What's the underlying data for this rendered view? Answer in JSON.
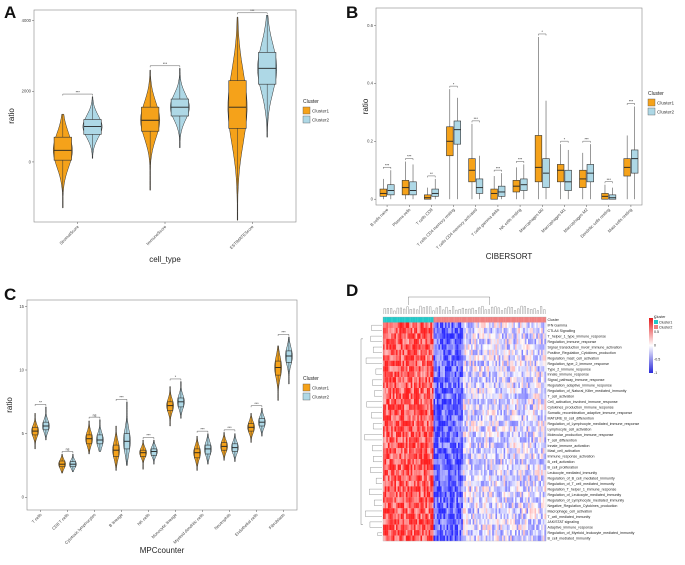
{
  "colors": {
    "cluster1": "#F5A21A",
    "cluster2": "#AED8E6",
    "heat_high": "#E41A1C",
    "heat_low": "#2B2BD9",
    "heat_mid": "#FFFFFF"
  },
  "chart_data": [
    {
      "panel": "A",
      "type": "violin_box",
      "title": "",
      "xlabel": "cell_type",
      "ylabel": "ratio",
      "categories": [
        "StromalScore",
        "ImmuneScore",
        "ESTIMATEScore"
      ],
      "yticks": [
        0,
        2000,
        4000
      ],
      "ylim": [
        -1700,
        4300
      ],
      "legend": {
        "title": "Cluster",
        "entries": [
          "Cluster1",
          "Cluster2"
        ],
        "position": "right"
      },
      "series": [
        {
          "name": "Cluster1",
          "color": "#F5A21A",
          "stats": [
            {
              "min": -1300,
              "q1": 50,
              "median": 330,
              "q3": 700,
              "max": 1350
            },
            {
              "min": -800,
              "q1": 870,
              "median": 1180,
              "q3": 1550,
              "max": 2600
            },
            {
              "min": -1650,
              "q1": 950,
              "median": 1550,
              "q3": 2300,
              "max": 4100
            }
          ]
        },
        {
          "name": "Cluster2",
          "color": "#AED8E6",
          "stats": [
            {
              "min": 100,
              "q1": 780,
              "median": 1000,
              "q3": 1200,
              "max": 1850
            },
            {
              "min": 400,
              "q1": 1300,
              "median": 1550,
              "q3": 1780,
              "max": 2650
            },
            {
              "min": 700,
              "q1": 2200,
              "median": 2650,
              "q3": 3100,
              "max": 4150
            }
          ]
        }
      ],
      "significance": [
        "***",
        "***",
        "***"
      ]
    },
    {
      "panel": "B",
      "type": "box",
      "xlabel": "CIBERSORT",
      "ylabel": "ratio",
      "categories": [
        "B cells naive",
        "Plasma cells",
        "T cells CD8",
        "T cells CD4 memory resting",
        "T cells CD4 memory activated",
        "T cells gamma delta",
        "NK cells resting",
        "Macrophages M0",
        "Macrophages M1",
        "Macrophages M2",
        "Dendritic cells resting",
        "Mast cells resting"
      ],
      "yticks": [
        0.0,
        0.2,
        0.4,
        0.6
      ],
      "ylim": [
        -0.02,
        0.66
      ],
      "legend": {
        "title": "Cluster",
        "entries": [
          "Cluster1",
          "Cluster2"
        ],
        "position": "right"
      },
      "series": [
        {
          "name": "Cluster1",
          "color": "#F5A21A",
          "stats": [
            {
              "min": 0.0,
              "q1": 0.01,
              "median": 0.02,
              "q3": 0.035,
              "max": 0.07
            },
            {
              "min": 0.0,
              "q1": 0.015,
              "median": 0.04,
              "q3": 0.065,
              "max": 0.13
            },
            {
              "min": 0.0,
              "q1": 0.0,
              "median": 0.005,
              "q3": 0.015,
              "max": 0.04
            },
            {
              "min": 0.0,
              "q1": 0.15,
              "median": 0.2,
              "q3": 0.25,
              "max": 0.38
            },
            {
              "min": 0.0,
              "q1": 0.06,
              "median": 0.1,
              "q3": 0.14,
              "max": 0.26
            },
            {
              "min": 0.0,
              "q1": 0.0,
              "median": 0.02,
              "q3": 0.035,
              "max": 0.08
            },
            {
              "min": 0.0,
              "q1": 0.025,
              "median": 0.045,
              "q3": 0.065,
              "max": 0.11
            },
            {
              "min": 0.0,
              "q1": 0.06,
              "median": 0.11,
              "q3": 0.22,
              "max": 0.56
            },
            {
              "min": 0.0,
              "q1": 0.06,
              "median": 0.1,
              "q3": 0.12,
              "max": 0.19
            },
            {
              "min": 0.0,
              "q1": 0.04,
              "median": 0.07,
              "q3": 0.1,
              "max": 0.16
            },
            {
              "min": 0.0,
              "q1": 0.0,
              "median": 0.01,
              "q3": 0.02,
              "max": 0.05
            },
            {
              "min": 0.0,
              "q1": 0.08,
              "median": 0.11,
              "q3": 0.14,
              "max": 0.22
            }
          ]
        },
        {
          "name": "Cluster2",
          "color": "#AED8E6",
          "stats": [
            {
              "min": 0.0,
              "q1": 0.015,
              "median": 0.03,
              "q3": 0.05,
              "max": 0.1
            },
            {
              "min": 0.0,
              "q1": 0.015,
              "median": 0.03,
              "q3": 0.06,
              "max": 0.12
            },
            {
              "min": 0.0,
              "q1": 0.01,
              "median": 0.02,
              "q3": 0.035,
              "max": 0.07
            },
            {
              "min": 0.0,
              "q1": 0.19,
              "median": 0.24,
              "q3": 0.27,
              "max": 0.35
            },
            {
              "min": 0.0,
              "q1": 0.02,
              "median": 0.04,
              "q3": 0.07,
              "max": 0.15
            },
            {
              "min": 0.0,
              "q1": 0.01,
              "median": 0.025,
              "q3": 0.045,
              "max": 0.09
            },
            {
              "min": 0.0,
              "q1": 0.03,
              "median": 0.05,
              "q3": 0.07,
              "max": 0.12
            },
            {
              "min": 0.0,
              "q1": 0.04,
              "median": 0.09,
              "q3": 0.14,
              "max": 0.34
            },
            {
              "min": 0.0,
              "q1": 0.03,
              "median": 0.06,
              "q3": 0.1,
              "max": 0.17
            },
            {
              "min": 0.0,
              "q1": 0.06,
              "median": 0.09,
              "q3": 0.12,
              "max": 0.19
            },
            {
              "min": 0.0,
              "q1": 0.0,
              "median": 0.005,
              "q3": 0.015,
              "max": 0.04
            },
            {
              "min": 0.0,
              "q1": 0.09,
              "median": 0.14,
              "q3": 0.17,
              "max": 0.32
            }
          ]
        }
      ],
      "significance": [
        "***",
        "***",
        "**",
        "*",
        "***",
        "***",
        "***",
        "*",
        "*",
        "***",
        "***",
        "***"
      ]
    },
    {
      "panel": "C",
      "type": "violin_box",
      "xlabel": "MPCcounter",
      "ylabel": "ratio",
      "categories": [
        "T cells",
        "CD8 T cells",
        "Cytotoxic lymphocytes",
        "B lineage",
        "NK cells",
        "Monocytic lineage",
        "Myeloid dendritic cells",
        "Neutrophils",
        "Endothelial cells",
        "Fibroblasts"
      ],
      "yticks": [
        0,
        5,
        10,
        15
      ],
      "ylim": [
        -1,
        15.5
      ],
      "legend": {
        "title": "Cluster",
        "entries": [
          "Cluster1",
          "Cluster2"
        ],
        "position": "right"
      },
      "series": [
        {
          "name": "Cluster1",
          "color": "#F5A21A",
          "stats": [
            {
              "min": 3.8,
              "q1": 4.9,
              "median": 5.2,
              "q3": 5.5,
              "max": 6.6
            },
            {
              "min": 1.9,
              "q1": 2.4,
              "median": 2.6,
              "q3": 2.85,
              "max": 3.4
            },
            {
              "min": 3.4,
              "q1": 4.2,
              "median": 4.6,
              "q3": 4.9,
              "max": 6.0
            },
            {
              "min": 2.1,
              "q1": 3.2,
              "median": 3.7,
              "q3": 4.1,
              "max": 5.6
            },
            {
              "min": 2.2,
              "q1": 3.2,
              "median": 3.5,
              "q3": 3.7,
              "max": 4.5
            },
            {
              "min": 5.6,
              "q1": 6.8,
              "median": 7.2,
              "q3": 7.5,
              "max": 8.7
            },
            {
              "min": 2.1,
              "q1": 3.1,
              "median": 3.5,
              "q3": 3.8,
              "max": 4.8
            },
            {
              "min": 2.9,
              "q1": 3.7,
              "median": 4.0,
              "q3": 4.3,
              "max": 5.1
            },
            {
              "min": 4.3,
              "q1": 5.2,
              "median": 5.5,
              "q3": 5.8,
              "max": 6.6
            },
            {
              "min": 7.6,
              "q1": 9.6,
              "median": 10.2,
              "q3": 10.7,
              "max": 11.9
            }
          ]
        },
        {
          "name": "Cluster2",
          "color": "#AED8E6",
          "stats": [
            {
              "min": 4.5,
              "q1": 5.3,
              "median": 5.6,
              "q3": 5.9,
              "max": 7.1
            },
            {
              "min": 2.0,
              "q1": 2.4,
              "median": 2.6,
              "q3": 2.8,
              "max": 3.4
            },
            {
              "min": 3.6,
              "q1": 4.2,
              "median": 4.5,
              "q3": 4.9,
              "max": 6.1
            },
            {
              "min": 2.5,
              "q1": 3.8,
              "median": 4.4,
              "q3": 5.0,
              "max": 7.5
            },
            {
              "min": 2.6,
              "q1": 3.3,
              "median": 3.6,
              "q3": 3.8,
              "max": 4.5
            },
            {
              "min": 6.2,
              "q1": 7.1,
              "median": 7.5,
              "q3": 7.8,
              "max": 9.1
            },
            {
              "min": 2.6,
              "q1": 3.4,
              "median": 3.8,
              "q3": 4.1,
              "max": 5.0
            },
            {
              "min": 2.8,
              "q1": 3.6,
              "median": 3.9,
              "q3": 4.2,
              "max": 5.0
            },
            {
              "min": 4.8,
              "q1": 5.6,
              "median": 5.9,
              "q3": 6.2,
              "max": 7.0
            },
            {
              "min": 8.9,
              "q1": 10.6,
              "median": 11.1,
              "q3": 11.5,
              "max": 12.6
            }
          ]
        }
      ],
      "significance": [
        "**",
        "ns",
        "ns",
        "***",
        "***",
        "*",
        "***",
        "***",
        "***",
        "***"
      ]
    },
    {
      "panel": "D",
      "type": "heatmap",
      "annotation_label": "Cluster",
      "legend": {
        "title": "Cluster",
        "entries": [
          "Cluster1",
          "Cluster2"
        ],
        "colors": [
          "#22C8C8",
          "#F08080"
        ]
      },
      "scale": {
        "max": 1,
        "mid_high": 0.5,
        "mid": 0,
        "mid_low": -0.5,
        "min": -1
      },
      "n_samples": 100,
      "cluster1_fraction": 0.31,
      "rows": [
        "Cluster",
        "IFN Gamma",
        "CTLA4 Signalling",
        "T_helper_1_type_immune_response",
        "Regulation_immune_response",
        "Signal_transduction_involr_immune_activation",
        "Positive_Regulation_Cytokines_production",
        "Regulation_mast_cell_activation",
        "Regulation_type_2_immune_response",
        "Type_2_immune_response",
        "Innate_immune_response",
        "Signal_pathway_immune_response",
        "Regulation_adaptive_immune_response",
        "Regulation_of_Natural_Killer_mediated_immunity",
        "T_cell_activation",
        "Cell_activation_involved_immune_response",
        "Cytokines_production_immune_response",
        "Somatic_recombination_adaptive_immune_response",
        "MATURE_B_cell_differention",
        "Regulation_of_Lymphocyte_mediated_immune_response",
        "Lymphocyte_cell_activation",
        "Molecular_production_immune_response",
        "T_cell_differention",
        "Innate_immune_activation",
        "Mast_cell_activation",
        "Immune_response_activation",
        "B_cell_activation",
        "B_cell_proliferation",
        "Leukocyte_mediated_immunity",
        "Regulation_of_B_cell_mediated_immunity",
        "Regulation_of_T_cell_mediated_immunity",
        "Regulation_T_helper_1_immune_response",
        "Regulation_of_Leukocyte_mediated_immunity",
        "Regulation_of_Lymphocyte_mediated_immunity",
        "Negative_Regulation_Cytokines_production",
        "Macrophage_cell_activation",
        "T_cell_mediated_immunity",
        "JAK/STAT signaling",
        "Adaptive_immune_response",
        "Regulation_of_Myeloid_leukocyte_mediated_immunity",
        "B_cell_mediated_immunity"
      ]
    }
  ]
}
